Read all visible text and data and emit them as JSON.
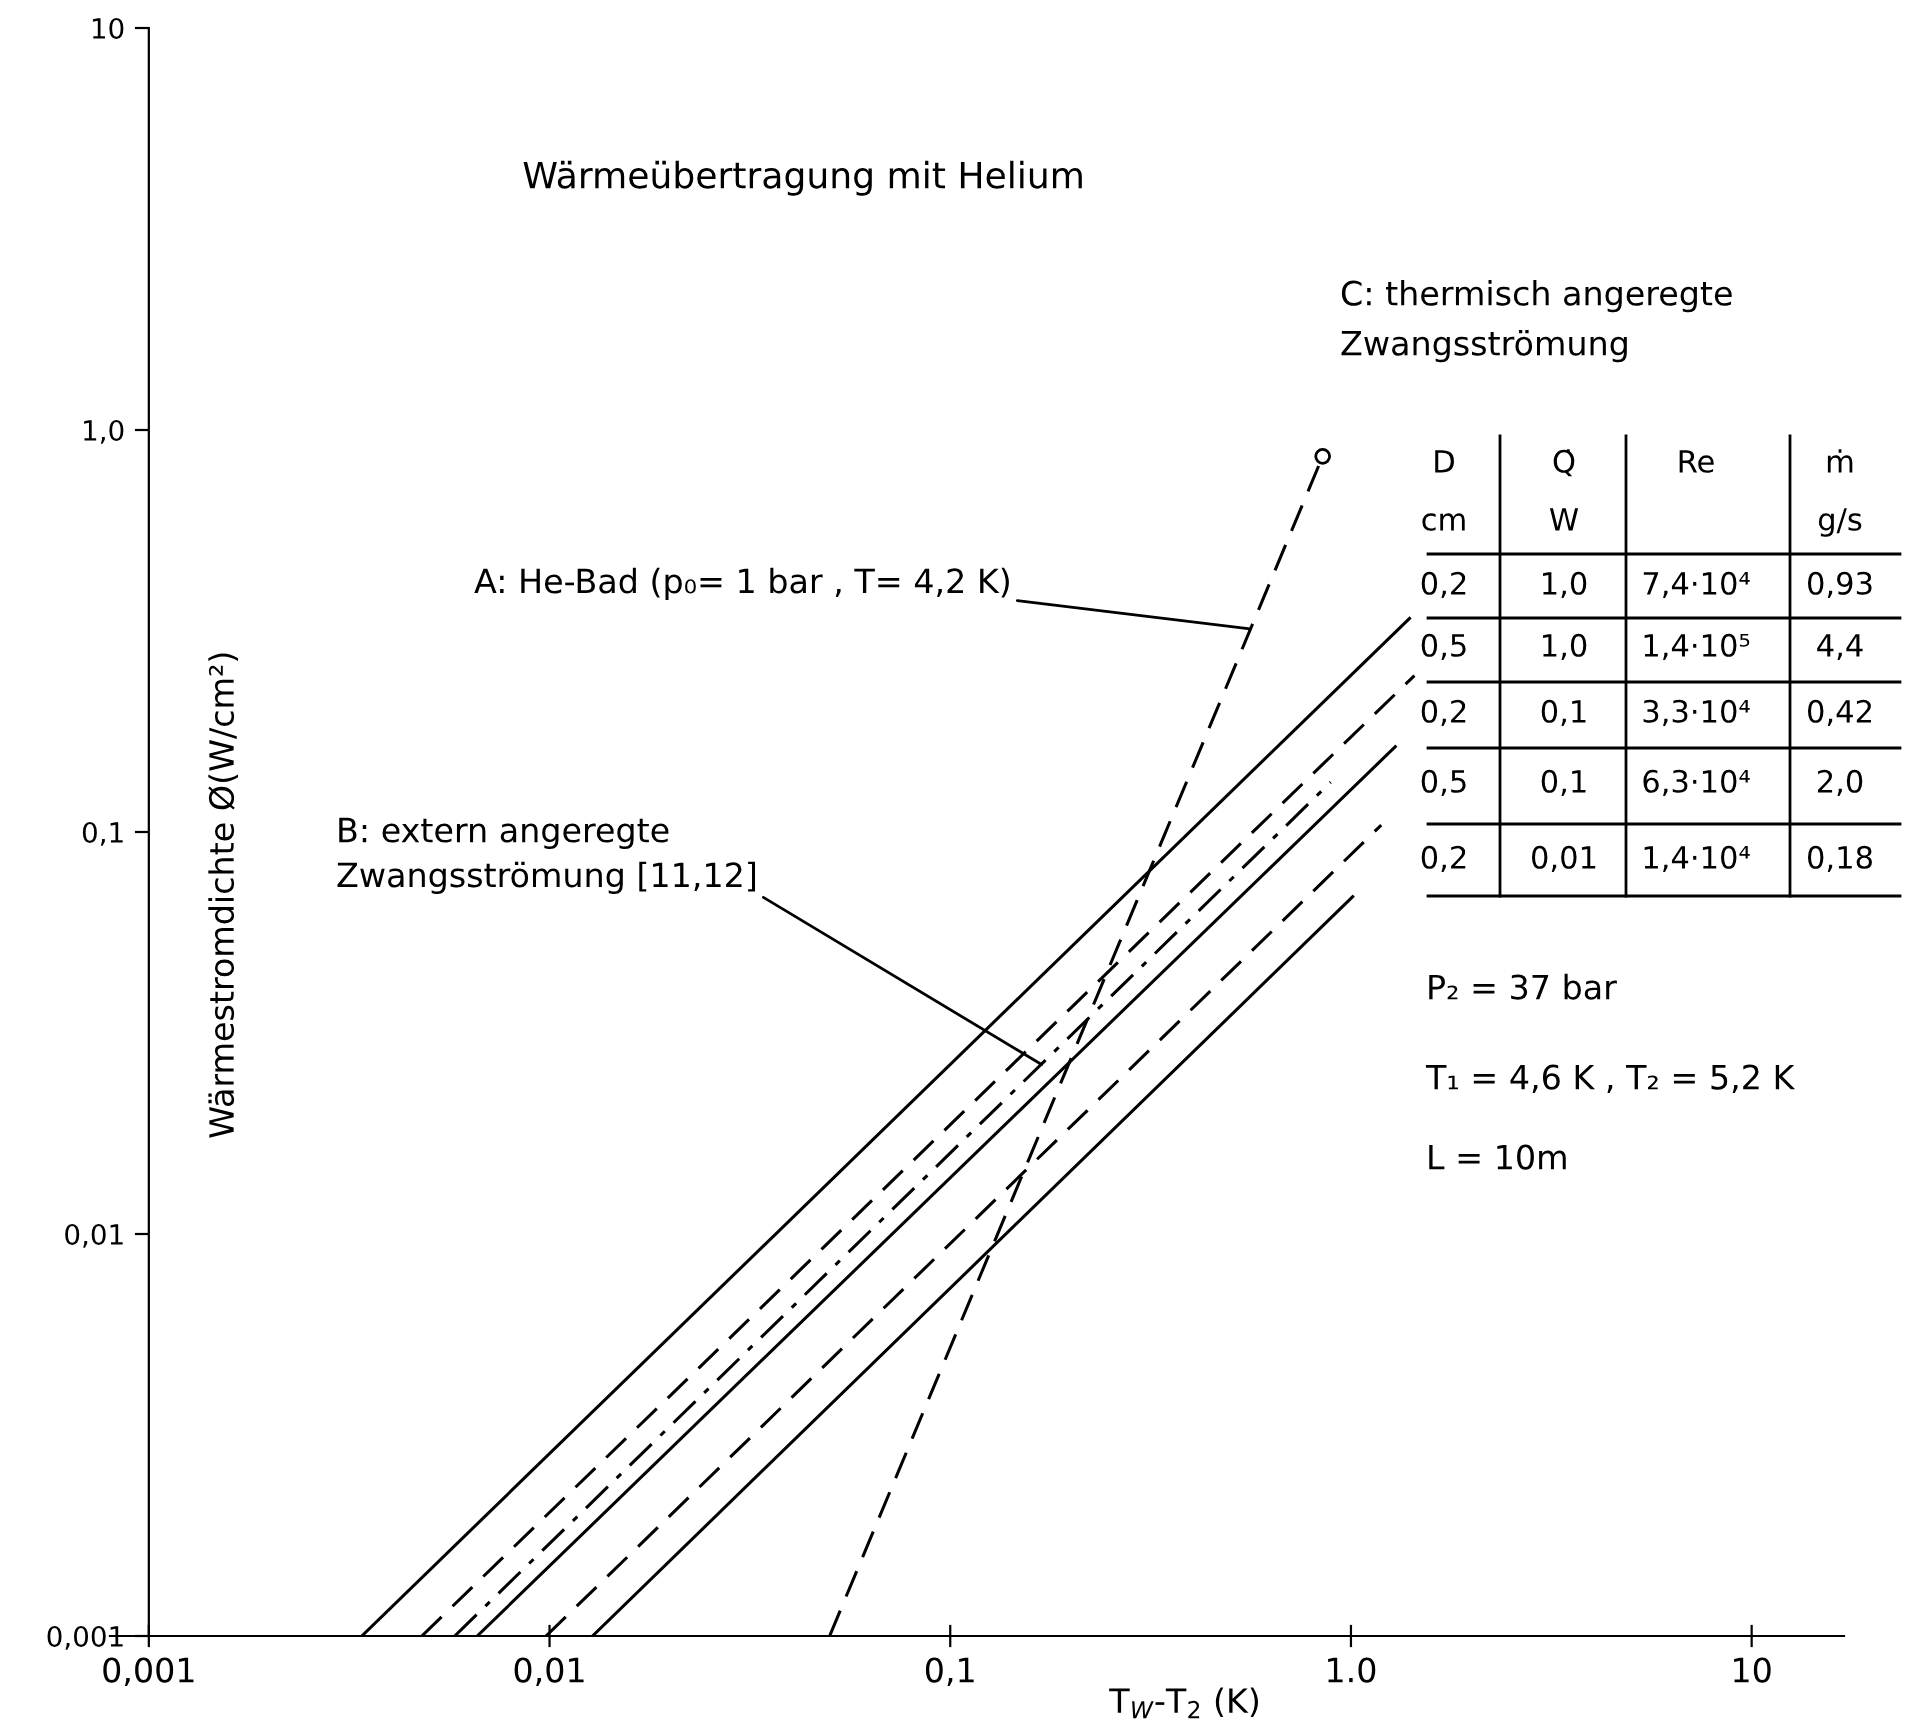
{
  "chart_data": {
    "type": "line",
    "title": "Wärmeübertragung mit Helium",
    "xlabel": "T$_{W}$-T$_{2}$ (K)",
    "ylabel": "Wärmestromdichte Ø(W/cm²)",
    "log": "xy",
    "grid": false,
    "legend": false,
    "xlim": [
      0.0008,
      17
    ],
    "ylim": [
      0.001,
      10
    ],
    "xticks": [
      {
        "value": 0.001,
        "label": "0,001"
      },
      {
        "value": 0.01,
        "label": "0,01"
      },
      {
        "value": 0.1,
        "label": "0,1"
      },
      {
        "value": 1,
        "label": "1.0"
      },
      10
    ],
    "yticks": [
      {
        "value": 0.001,
        "label": "0,001"
      },
      {
        "value": 0.01,
        "label": "0,01"
      },
      {
        "value": 0.1,
        "label": "0,1"
      },
      {
        "value": 1,
        "label": "1,0"
      },
      10
    ],
    "series": [
      {
        "color": "#000000",
        "line_style": "dashed",
        "marker": "circle",
        "x": [
          0.05,
          0.85
        ],
        "values": [
          0.001,
          0.86
        ]
      },
      {
        "color": "#000000",
        "line_style": "solid",
        "x": [
          0.0034,
          1.4
        ],
        "values": [
          0.001,
          0.34
        ]
      },
      {
        "color": "#000000",
        "line_style": "dashed",
        "x": [
          0.0048,
          1.44
        ],
        "values": [
          0.001,
          0.245
        ]
      },
      {
        "color": "#000000",
        "line_style": "dashdot",
        "x": [
          0.0058,
          0.89
        ],
        "values": [
          0.001,
          0.133
        ]
      },
      {
        "color": "#000000",
        "line_style": "solid",
        "x": [
          0.0066,
          1.29
        ],
        "values": [
          0.001,
          0.163
        ]
      },
      {
        "color": "#000000",
        "line_style": "dashed",
        "x": [
          0.0098,
          1.19
        ],
        "values": [
          0.001,
          0.104
        ]
      },
      {
        "color": "#000000",
        "line_style": "solid",
        "x": [
          0.0128,
          1.01
        ],
        "values": [
          0.001,
          0.069
        ]
      }
    ],
    "annotations": [
      {
        "text": "A: He-Bad (p₀= 1 bar , T= 4,2 K)",
        "x": 0.56,
        "y": 0.32
      },
      {
        "text": "B: extern angeregte\nZwangsströmung [11,12]",
        "x": 0.169,
        "y": 0.0264
      },
      "C: thermisch angeregte\nZwangsströmung",
      "D",
      "Q̇",
      "Re",
      "ṁ",
      "cm",
      "W",
      "g/s",
      "0,2",
      "1,0",
      "7,4·10⁴",
      "0,93",
      "0,5",
      "1,0",
      "1,4·10⁵",
      "4,4",
      "0,2",
      "0,1",
      "3,3·10⁴",
      "0,42",
      "0,5",
      "0,1",
      "6,3·10⁴",
      "2,0",
      "0,2",
      "0,01",
      "1,4·10⁴",
      "0,18",
      "P₂ = 37 bar",
      "T₁ = 4,6 K , T₂ = 5,2 K",
      "L = 10m"
    ]
  }
}
